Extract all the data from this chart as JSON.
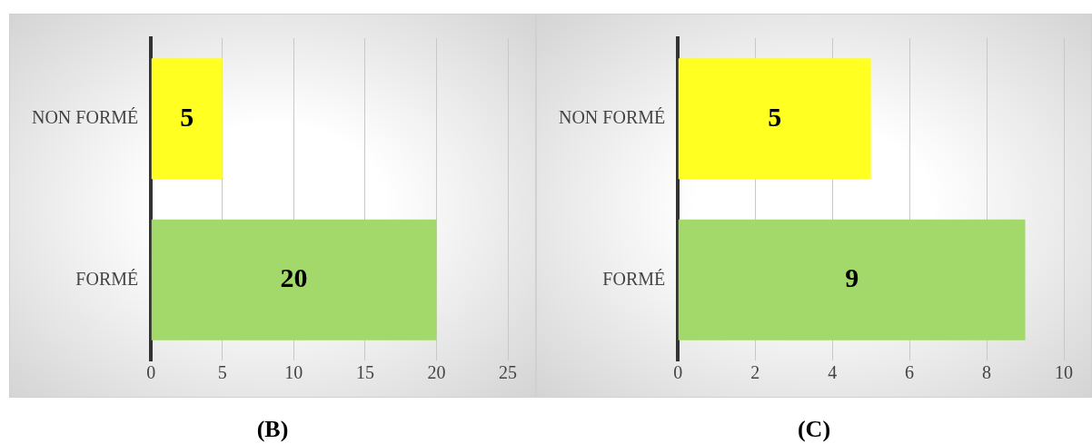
{
  "chart_data": [
    {
      "type": "bar",
      "orientation": "horizontal",
      "categories": [
        "NON FORMÉ",
        "FORMÉ"
      ],
      "values": [
        5,
        20
      ],
      "colors": [
        "#ffff22",
        "#a3d86a"
      ],
      "xlim": [
        0,
        25
      ],
      "xticks": [
        0,
        5,
        10,
        15,
        20,
        25
      ],
      "grid": "x",
      "data_labels": true,
      "annotations": [
        "(B)"
      ]
    },
    {
      "type": "bar",
      "orientation": "horizontal",
      "categories": [
        "NON FORMÉ",
        "FORMÉ"
      ],
      "values": [
        5,
        9
      ],
      "colors": [
        "#ffff22",
        "#a3d86a"
      ],
      "xlim": [
        0,
        10
      ],
      "xticks": [
        0,
        2,
        4,
        6,
        8,
        10
      ],
      "grid": "x",
      "data_labels": true,
      "annotations": [
        "(C)"
      ]
    }
  ]
}
